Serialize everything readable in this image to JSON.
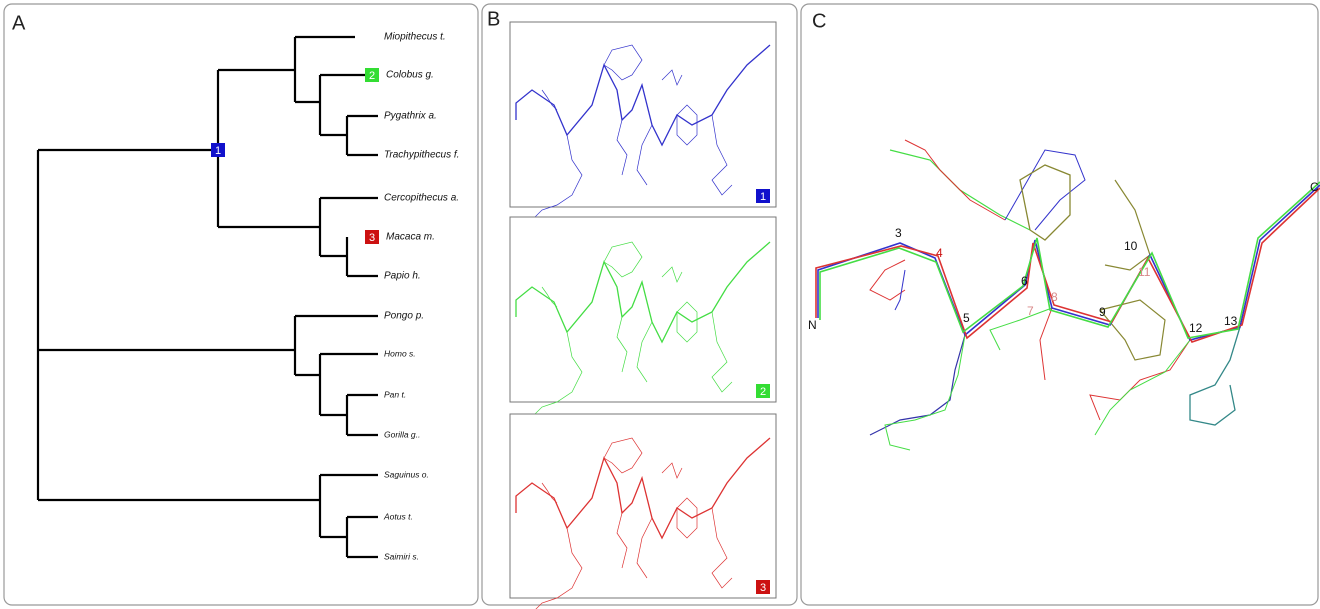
{
  "panels": {
    "a": {
      "label": "A",
      "species": [
        "Miopithecus t.",
        "Colobus g.",
        "Pygathrix a.",
        "Trachypithecus f.",
        "Cercopithecus a.",
        "Macaca m.",
        "Papio h.",
        "Pongo p.",
        "Homo s.",
        "Pan t.",
        "Gorilla g..",
        "Saguinus o.",
        "Aotus t.",
        "Saimiri s."
      ],
      "nodes": [
        "1",
        "2",
        "3"
      ]
    },
    "b": {
      "label": "B",
      "badges": [
        "1",
        "2",
        "3"
      ]
    },
    "c": {
      "label": "C",
      "residues": [
        "N",
        "3",
        "4",
        "5",
        "6",
        "7",
        "8",
        "9",
        "10",
        "11",
        "12",
        "13",
        "C"
      ]
    }
  }
}
